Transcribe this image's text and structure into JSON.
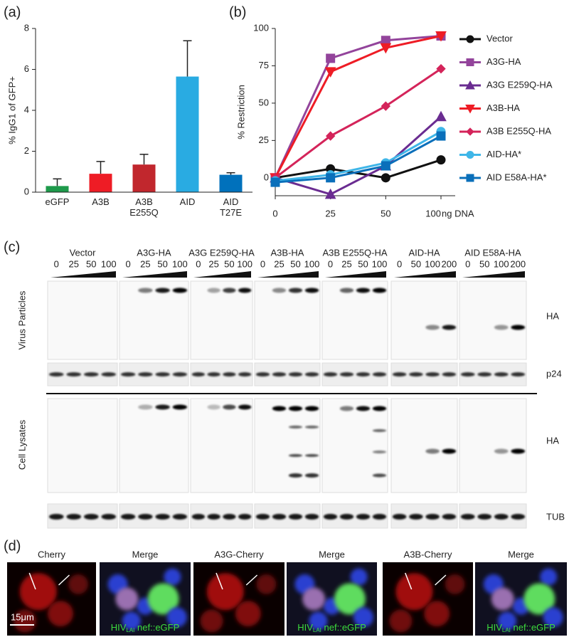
{
  "chart_data": [
    {
      "type": "bar",
      "panel_label": "(a)",
      "ylabel": "% IgG1 of GFP+",
      "categories": [
        "eGFP",
        "A3B",
        "A3B E255Q",
        "AID",
        "AID T27E"
      ],
      "values": [
        0.3,
        0.9,
        1.35,
        5.65,
        0.85
      ],
      "errors": [
        0.35,
        0.6,
        0.5,
        1.75,
        0.1
      ],
      "colors": [
        "#1e9a4b",
        "#ee1c25",
        "#c1272d",
        "#29abe2",
        "#0071bc"
      ],
      "ylim": [
        0,
        8
      ],
      "yticks": [
        0,
        2,
        4,
        6,
        8
      ]
    },
    {
      "type": "line",
      "panel_label": "(b)",
      "ylabel": "% Restriction",
      "xlabel": "ng DNA",
      "categories": [
        "0",
        "25",
        "50",
        "100"
      ],
      "ylim": [
        -12,
        100
      ],
      "yticks": [
        0,
        25,
        50,
        75,
        100
      ],
      "series": [
        {
          "name": "Vector",
          "color": "#111111",
          "marker": "circle",
          "values": [
            0,
            6,
            0,
            12
          ]
        },
        {
          "name": "A3G-HA",
          "color": "#93449b",
          "marker": "square",
          "values": [
            0,
            80,
            92,
            95
          ]
        },
        {
          "name": "A3G E259Q-HA",
          "color": "#6a2c91",
          "marker": "triangle",
          "values": [
            0,
            -11,
            8,
            41
          ]
        },
        {
          "name": "A3B-HA",
          "color": "#ee1c25",
          "marker": "triangle-down",
          "values": [
            0,
            71,
            87,
            95
          ]
        },
        {
          "name": "A3B E255Q-HA",
          "color": "#d4245a",
          "marker": "diamond",
          "values": [
            0,
            28,
            48,
            73
          ]
        },
        {
          "name": "AID-HA*",
          "color": "#3fb6e8",
          "marker": "circle",
          "values": [
            -2,
            2,
            10,
            31
          ]
        },
        {
          "name": "AID E58A-HA*",
          "color": "#0a6fba",
          "marker": "square",
          "values": [
            -3,
            0,
            8,
            28
          ]
        }
      ]
    }
  ],
  "panel_c": {
    "label": "(c)",
    "groups": [
      {
        "name": "Vector",
        "lanes": [
          "0",
          "25",
          "50",
          "100"
        ]
      },
      {
        "name": "A3G-HA",
        "lanes": [
          "0",
          "25",
          "50",
          "100"
        ]
      },
      {
        "name": "A3G E259Q-HA",
        "lanes": [
          "0",
          "25",
          "50",
          "100"
        ]
      },
      {
        "name": "A3B-HA",
        "lanes": [
          "0",
          "25",
          "50",
          "100"
        ]
      },
      {
        "name": "A3B E255Q-HA",
        "lanes": [
          "0",
          "25",
          "50",
          "100"
        ]
      },
      {
        "name": "AID-HA",
        "lanes": [
          "0",
          "50",
          "100",
          "200"
        ]
      },
      {
        "name": "AID E58A-HA",
        "lanes": [
          "0",
          "50",
          "100",
          "200"
        ]
      }
    ],
    "row_labels": [
      "Virus Particles",
      "Cell Lysates"
    ],
    "band_labels": [
      "HA",
      "p24",
      "HA",
      "TUB"
    ]
  },
  "panel_d": {
    "label": "(d)",
    "images": [
      {
        "caption": "Cherry"
      },
      {
        "caption": "Merge"
      },
      {
        "caption": "A3G-Cherry"
      },
      {
        "caption": "Merge"
      },
      {
        "caption": "A3B-Cherry"
      },
      {
        "caption": "Merge"
      }
    ],
    "overlay": {
      "main": "HIV",
      "sub": "LAI",
      "rest": " nef::eGFP"
    },
    "scale_bar": "15μm"
  }
}
